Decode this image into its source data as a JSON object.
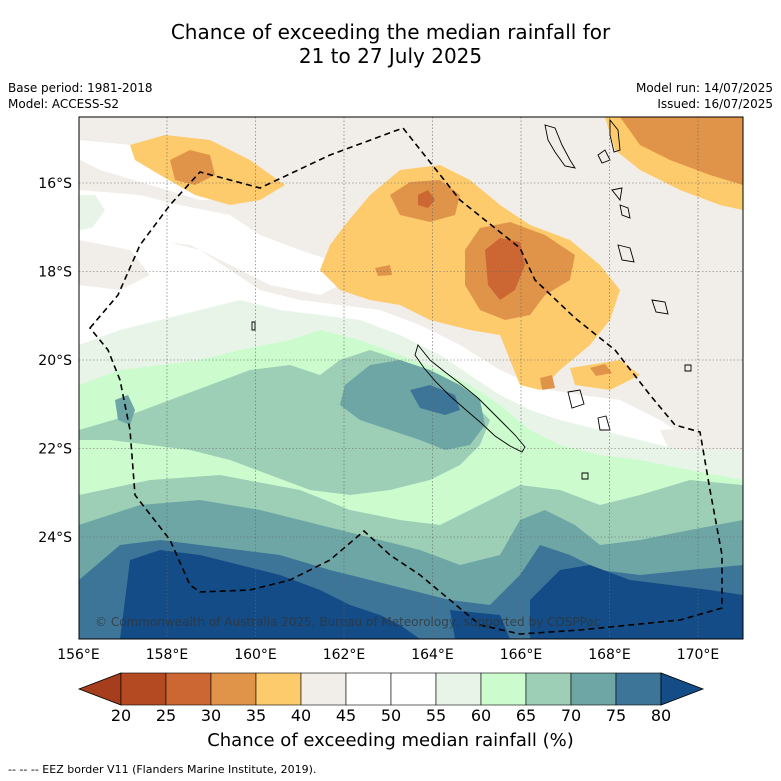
{
  "title": {
    "line1": "Chance of exceeding the median rainfall for",
    "line2": "21 to 27 July 2025"
  },
  "meta": {
    "base_period": "Base period: 1981-2018",
    "model": "Model: ACCESS-S2",
    "model_run": "Model run: 14/07/2025",
    "issued": "Issued: 16/07/2025"
  },
  "map": {
    "lon_ticks": [
      "156°E",
      "158°E",
      "160°E",
      "162°E",
      "164°E",
      "166°E",
      "168°E",
      "170°E"
    ],
    "lat_ticks": [
      "16°S",
      "18°S",
      "20°S",
      "22°S",
      "24°S"
    ],
    "credit": "© Commonwealth of Australia 2025, Bureau of Meteorology, supported by COSPPac"
  },
  "colorbar": {
    "ticks": [
      "20",
      "25",
      "30",
      "35",
      "40",
      "45",
      "50",
      "55",
      "60",
      "65",
      "70",
      "75",
      "80"
    ],
    "colors": [
      "#a63d1c",
      "#b34a22",
      "#cc6633",
      "#e0944a",
      "#fdcb6b",
      "#f1ede8",
      "#ffffff",
      "#ffffff",
      "#e8f4e8",
      "#ccfcce",
      "#9ccfb6",
      "#6ea6a6",
      "#3d7598",
      "#134c86"
    ],
    "label": "Chance of exceeding median rainfall (%)"
  },
  "legend": {
    "eez": "--  --  -- EEZ border V11 (Flanders Marine Institute, 2019)."
  }
}
